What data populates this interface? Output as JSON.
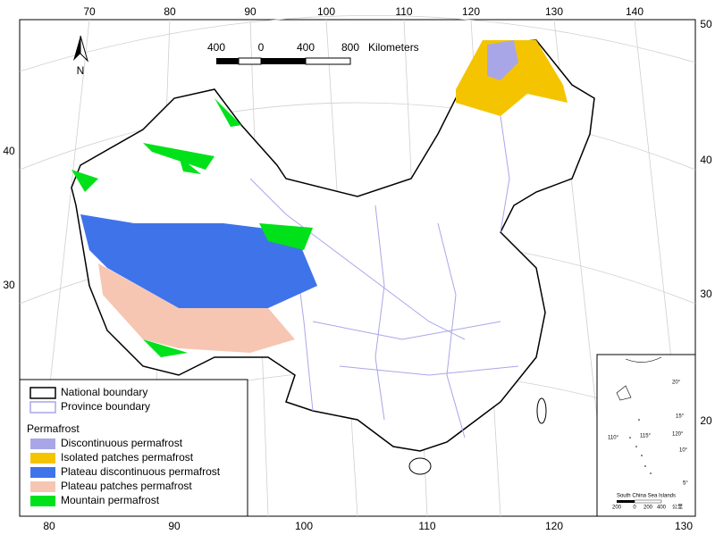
{
  "graticule": {
    "top": [
      "70",
      "80",
      "90",
      "100",
      "110",
      "120",
      "130",
      "140"
    ],
    "left": [
      "40",
      "30"
    ],
    "right": [
      "50",
      "40",
      "30",
      "20"
    ],
    "bottom": [
      "80",
      "90",
      "100",
      "110",
      "120",
      "130"
    ]
  },
  "north_arrow": "N",
  "scale_bar": {
    "ticks": [
      "400",
      "0",
      "400",
      "800"
    ],
    "unit": "Kilometers"
  },
  "legend": {
    "boundaries": [
      {
        "label": "National boundary",
        "color": "#000000"
      },
      {
        "label": "Province boundary",
        "color": "#a9a6e8"
      }
    ],
    "heading": "Permafrost",
    "items": [
      {
        "label": "Discontinuous permafrost",
        "color": "#a9a6e8"
      },
      {
        "label": "Isolated patches permafrost",
        "color": "#f5c400"
      },
      {
        "label": "Plateau discontinuous permafrost",
        "color": "#3f73ea"
      },
      {
        "label": "Plateau patches permafrost",
        "color": "#f6c6b3"
      },
      {
        "label": "Mountain permafrost",
        "color": "#00e11a"
      }
    ]
  },
  "inset": {
    "title": "South China Sea Islands",
    "lat_labels": [
      "20°",
      "15°",
      "10°",
      "5°"
    ],
    "lon_labels": [
      "110°",
      "115°",
      "120°"
    ],
    "scale": [
      "200",
      "0",
      "200",
      "400",
      "公里"
    ]
  }
}
